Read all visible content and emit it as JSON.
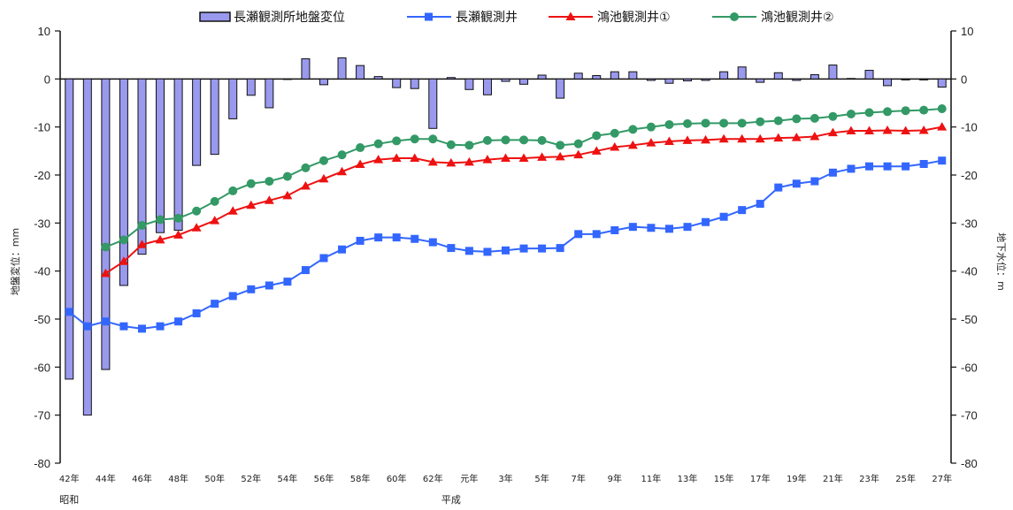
{
  "chart_data": {
    "type": "bar-line-combo",
    "legend_position": "top",
    "categories": [
      "42年",
      "43年",
      "44年",
      "45年",
      "46年",
      "47年",
      "48年",
      "49年",
      "50年",
      "51年",
      "52年",
      "53年",
      "54年",
      "55年",
      "56年",
      "57年",
      "58年",
      "59年",
      "60年",
      "61年",
      "62年",
      "63年",
      "元年",
      "2年",
      "3年",
      "4年",
      "5年",
      "6年",
      "7年",
      "8年",
      "9年",
      "10年",
      "11年",
      "12年",
      "13年",
      "14年",
      "15年",
      "16年",
      "17年",
      "18年",
      "19年",
      "20年",
      "21年",
      "22年",
      "23年",
      "24年",
      "25年",
      "26年",
      "27年"
    ],
    "x_tick_labels": [
      "42年",
      "",
      "44年",
      "",
      "46年",
      "",
      "48年",
      "",
      "50年",
      "",
      "52年",
      "",
      "54年",
      "",
      "56年",
      "",
      "58年",
      "",
      "60年",
      "",
      "62年",
      "",
      "元年",
      "",
      "3年",
      "",
      "5年",
      "",
      "7年",
      "",
      "9年",
      "",
      "11年",
      "",
      "13年",
      "",
      "15年",
      "",
      "17年",
      "",
      "19年",
      "",
      "21年",
      "",
      "23年",
      "",
      "25年",
      "",
      "27年"
    ],
    "era_labels": [
      {
        "text": "昭和",
        "index": 0
      },
      {
        "text": "平成",
        "index": 21
      }
    ],
    "left_axis": {
      "label": "地盤変位：mm",
      "ylim": [
        -80,
        10
      ],
      "ticks": [
        10,
        0,
        -10,
        -20,
        -30,
        -40,
        -50,
        -60,
        -70,
        -80
      ]
    },
    "right_axis": {
      "label": "地下水位：m",
      "ylim": [
        -80,
        10
      ],
      "ticks": [
        10,
        0,
        -10,
        -20,
        -30,
        -40,
        -50,
        -60,
        -70,
        -80
      ]
    },
    "bar_series": {
      "name": "長瀬観測所地盤変位",
      "color": "#9999ee",
      "values": [
        -62.5,
        -70,
        -60.5,
        -43,
        -36.5,
        -32,
        -31.5,
        -18,
        -15.7,
        -8.3,
        -3.4,
        -6,
        0,
        4.2,
        -1.2,
        4.4,
        2.8,
        0.5,
        -1.8,
        -2,
        -10.3,
        0.3,
        -2.2,
        -3.3,
        -0.5,
        -1.1,
        0.8,
        -4,
        1.2,
        0.7,
        1.5,
        1.5,
        -0.3,
        -0.9,
        -0.4,
        -0.3,
        1.5,
        2.5,
        -0.7,
        1.3,
        -0.3,
        0.9,
        2.9,
        0.1,
        1.8,
        -1.4,
        -0.2,
        -0.2,
        -1.7
      ]
    },
    "line_series": [
      {
        "name": "長瀬観測井",
        "color": "#3366ff",
        "marker": "square",
        "values": [
          -48.5,
          -51.5,
          -50.5,
          -51.5,
          -52,
          -51.5,
          -50.5,
          -48.8,
          -46.8,
          -45.2,
          -43.8,
          -43,
          -42.2,
          -39.8,
          -37.3,
          -35.5,
          -33.7,
          -33,
          -33,
          -33.3,
          -34,
          -35.2,
          -35.8,
          -36,
          -35.7,
          -35.3,
          -35.3,
          -35.2,
          -32.3,
          -32.3,
          -31.5,
          -30.8,
          -31,
          -31.2,
          -30.8,
          -29.8,
          -28.7,
          -27.3,
          -26,
          -22.6,
          -21.8,
          -21.3,
          -19.5,
          -18.7,
          -18.2,
          -18.2,
          -18.2,
          -17.7,
          -17
        ]
      },
      {
        "name": "鴻池観測井①",
        "color": "#ee1111",
        "marker": "triangle",
        "values": [
          null,
          null,
          -40.5,
          -38,
          -34.5,
          -33.5,
          -32.5,
          -31,
          -29.5,
          -27.5,
          -26.3,
          -25.3,
          -24.3,
          -22.3,
          -20.8,
          -19.3,
          -17.8,
          -16.8,
          -16.5,
          -16.5,
          -17.3,
          -17.5,
          -17.3,
          -16.8,
          -16.5,
          -16.5,
          -16.3,
          -16.2,
          -15.8,
          -15,
          -14.2,
          -13.8,
          -13.3,
          -13,
          -12.8,
          -12.7,
          -12.5,
          -12.5,
          -12.5,
          -12.3,
          -12.2,
          -12,
          -11.2,
          -10.8,
          -10.8,
          -10.7,
          -10.8,
          -10.7,
          -10
        ]
      },
      {
        "name": "鴻池観測井②",
        "color": "#339966",
        "marker": "circle",
        "values": [
          null,
          null,
          -35,
          -33.5,
          -30.5,
          -29.3,
          -29,
          -27.5,
          -25.5,
          -23.3,
          -21.8,
          -21.3,
          -20.3,
          -18.5,
          -17,
          -15.8,
          -14.3,
          -13.5,
          -12.9,
          -12.5,
          -12.5,
          -13.7,
          -13.8,
          -12.8,
          -12.7,
          -12.7,
          -12.8,
          -13.8,
          -13.5,
          -11.8,
          -11.3,
          -10.5,
          -10,
          -9.5,
          -9.3,
          -9.2,
          -9.2,
          -9.2,
          -8.9,
          -8.7,
          -8.3,
          -8.2,
          -7.8,
          -7.3,
          -7,
          -6.8,
          -6.6,
          -6.5,
          -6.2
        ]
      }
    ]
  }
}
